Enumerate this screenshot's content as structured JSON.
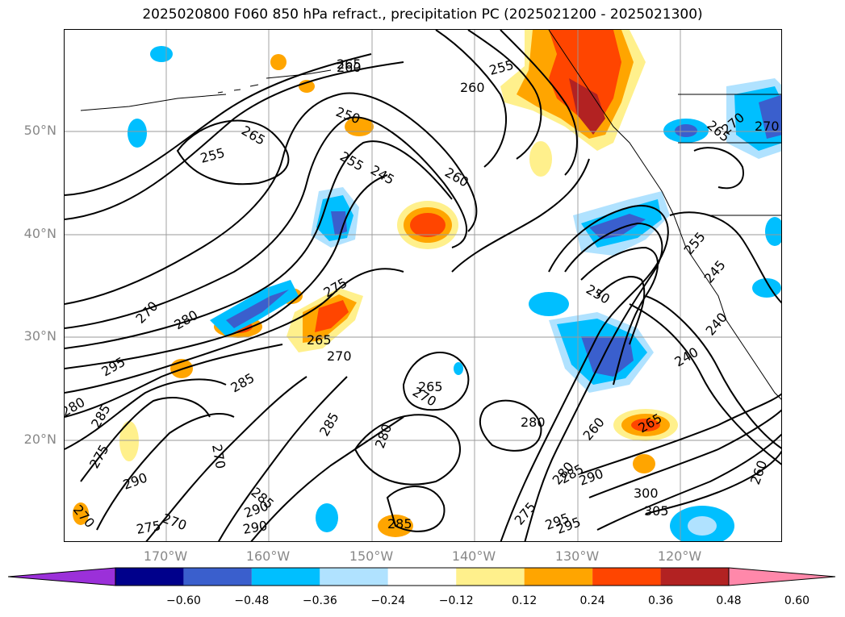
{
  "title": "2025020800 F060 850 hPa refract., precipitation PC (2025021200 - 2025021300)",
  "lat_labels": [
    "50°N",
    "40°N",
    "30°N",
    "20°N"
  ],
  "lon_labels": [
    "170°W",
    "160°W",
    "150°W",
    "140°W",
    "130°W",
    "120°W"
  ],
  "colorbar": {
    "ticks": [
      "−0.60",
      "−0.48",
      "−0.36",
      "−0.24",
      "−0.12",
      "0.12",
      "0.24",
      "0.36",
      "0.48",
      "0.60"
    ],
    "colors": [
      "#9b30d9",
      "#00008b",
      "#3a5fcd",
      "#00bfff",
      "#b0e2ff",
      "#ffffff",
      "#fff08c",
      "#ffa500",
      "#ff4500",
      "#b22222",
      "#ff88aa"
    ]
  },
  "contour_labels": [
    "260",
    "265",
    "255",
    "260",
    "250",
    "265",
    "255",
    "255",
    "245",
    "260",
    "270",
    "265",
    "270",
    "275",
    "285",
    "280",
    "285",
    "265",
    "270",
    "280",
    "265",
    "270",
    "250",
    "255",
    "245",
    "240",
    "240",
    "260",
    "265",
    "260",
    "270",
    "280",
    "285",
    "290",
    "275",
    "300",
    "305",
    "295",
    "285",
    "290",
    "275",
    "270",
    "275",
    "295",
    "285",
    "285",
    "270",
    "280",
    "270",
    "290",
    "290",
    "295",
    "280"
  ]
}
